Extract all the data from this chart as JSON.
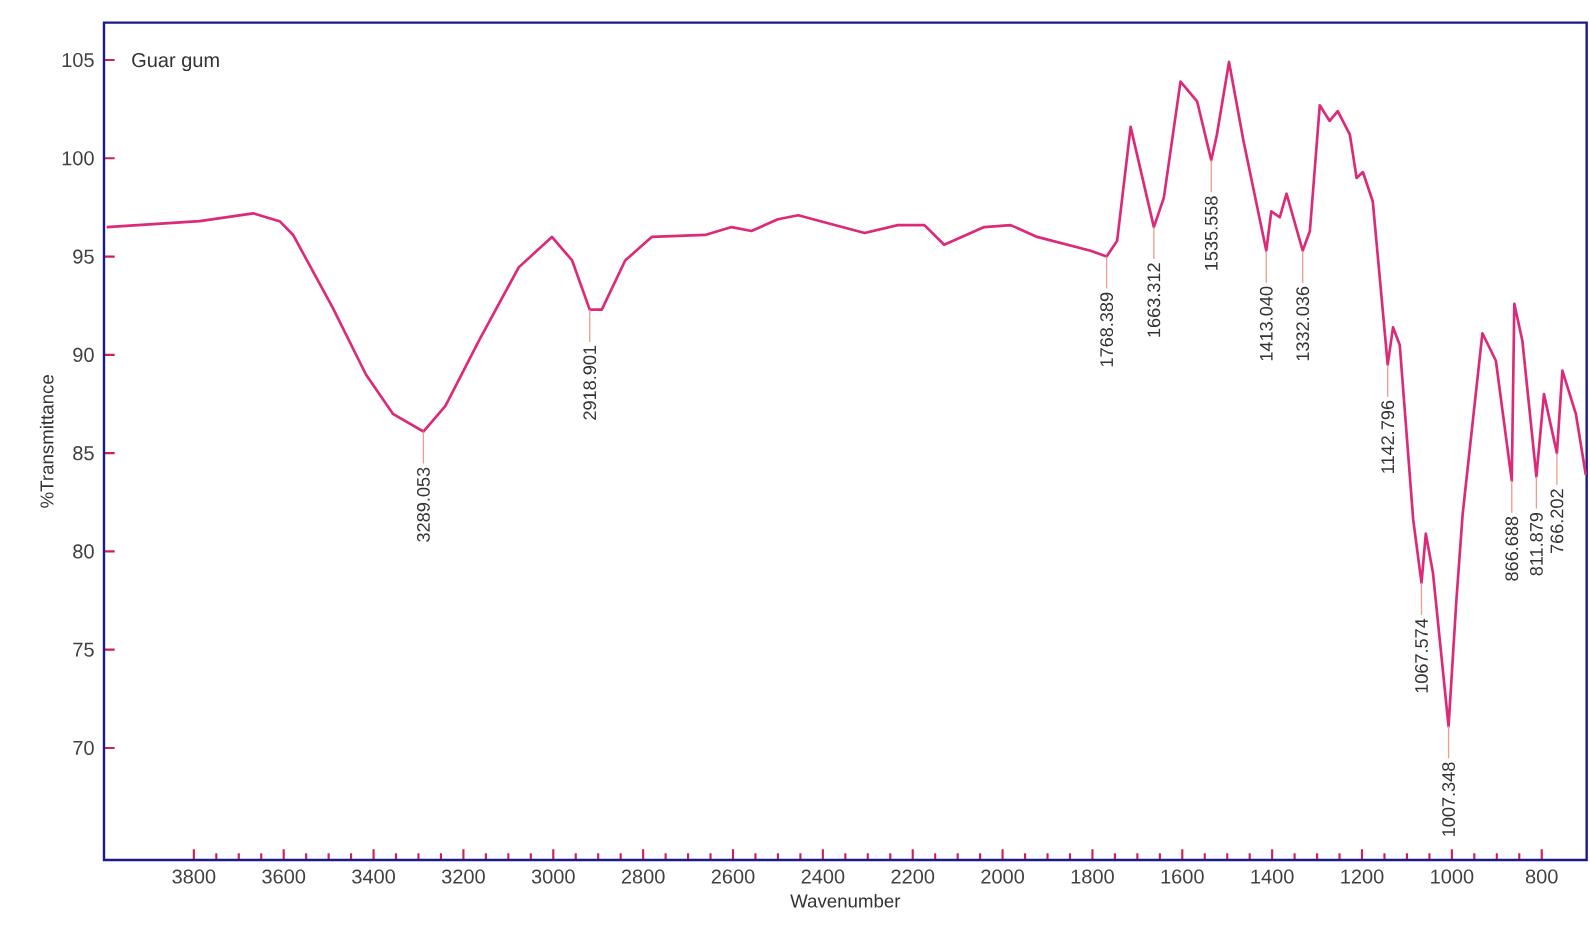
{
  "chart_data": {
    "type": "line",
    "title": "Guar gum",
    "xlabel": "Wavenumber",
    "ylabel": "%Transmittance",
    "xlim": [
      4000,
      700
    ],
    "ylim": [
      64.3,
      106.9
    ],
    "xticks": [
      3800,
      3600,
      3400,
      3200,
      3000,
      2800,
      2600,
      2400,
      2200,
      2000,
      1800,
      1600,
      1400,
      1200,
      1000,
      800
    ],
    "yticks": [
      70,
      75,
      80,
      85,
      90,
      95,
      100,
      105
    ],
    "marker": "none",
    "grid": false,
    "series": [
      {
        "color": "#dc2a78",
        "x": [
          3994,
          3787,
          3668,
          3609,
          3579,
          3491,
          3417,
          3357,
          3289.053,
          3240,
          3166,
          3077,
          3003,
          2958,
          2918.901,
          2892,
          2840,
          2781,
          2662,
          2603,
          2559,
          2500,
          2455,
          2307,
          2233,
          2174,
          2130,
          2041,
          1982,
          1923,
          1804,
          1768.389,
          1745,
          1715,
          1663.312,
          1641,
          1604,
          1567,
          1535.558,
          1523,
          1496,
          1464,
          1413.04,
          1402,
          1383,
          1368,
          1332.036,
          1316,
          1294,
          1272,
          1254,
          1227,
          1212,
          1198,
          1176,
          1142.796,
          1131,
          1116,
          1086,
          1067.574,
          1058,
          1042,
          1007.348,
          990,
          976,
          932,
          902,
          866.688,
          861,
          843,
          811.879,
          795,
          766.202,
          754,
          724,
          702
        ],
        "values": [
          96.5,
          96.8,
          97.2,
          96.8,
          96.1,
          92.4,
          89.0,
          87.0,
          86.1,
          87.4,
          90.7,
          94.45,
          96.0,
          94.8,
          92.3,
          92.3,
          94.8,
          96.0,
          96.1,
          96.5,
          96.3,
          96.9,
          97.1,
          96.2,
          96.6,
          96.6,
          95.6,
          96.5,
          96.6,
          96.0,
          95.3,
          95.0,
          95.8,
          101.6,
          96.5,
          98.0,
          103.9,
          102.9,
          99.9,
          101.2,
          104.9,
          100.9,
          95.3,
          97.3,
          97.0,
          98.2,
          95.3,
          96.3,
          102.7,
          101.9,
          102.4,
          101.2,
          99.0,
          99.3,
          97.8,
          89.5,
          91.4,
          90.5,
          81.6,
          78.4,
          80.9,
          78.9,
          71.1,
          77.5,
          81.9,
          91.1,
          89.7,
          83.6,
          92.6,
          90.7,
          83.8,
          88.0,
          85.0,
          89.2,
          87.0,
          83.9
        ]
      }
    ],
    "annotations": [
      {
        "text": "3289.053",
        "x": 3289.053,
        "y": 86.1
      },
      {
        "text": "2918.901",
        "x": 2918.901,
        "y": 92.3
      },
      {
        "text": "1768.389",
        "x": 1768.389,
        "y": 95.0
      },
      {
        "text": "1663.312",
        "x": 1663.312,
        "y": 96.5
      },
      {
        "text": "1535.558",
        "x": 1535.558,
        "y": 99.9
      },
      {
        "text": "1413.040",
        "x": 1413.04,
        "y": 95.3
      },
      {
        "text": "1332.036",
        "x": 1332.036,
        "y": 95.3
      },
      {
        "text": "1142.796",
        "x": 1142.796,
        "y": 89.5
      },
      {
        "text": "1067.574",
        "x": 1067.574,
        "y": 78.4
      },
      {
        "text": "1007.348",
        "x": 1007.348,
        "y": 71.1
      },
      {
        "text": "866.688",
        "x": 866.688,
        "y": 83.6
      },
      {
        "text": "811.879",
        "x": 811.879,
        "y": 83.8
      },
      {
        "text": "766.202",
        "x": 766.202,
        "y": 85.0
      }
    ]
  }
}
